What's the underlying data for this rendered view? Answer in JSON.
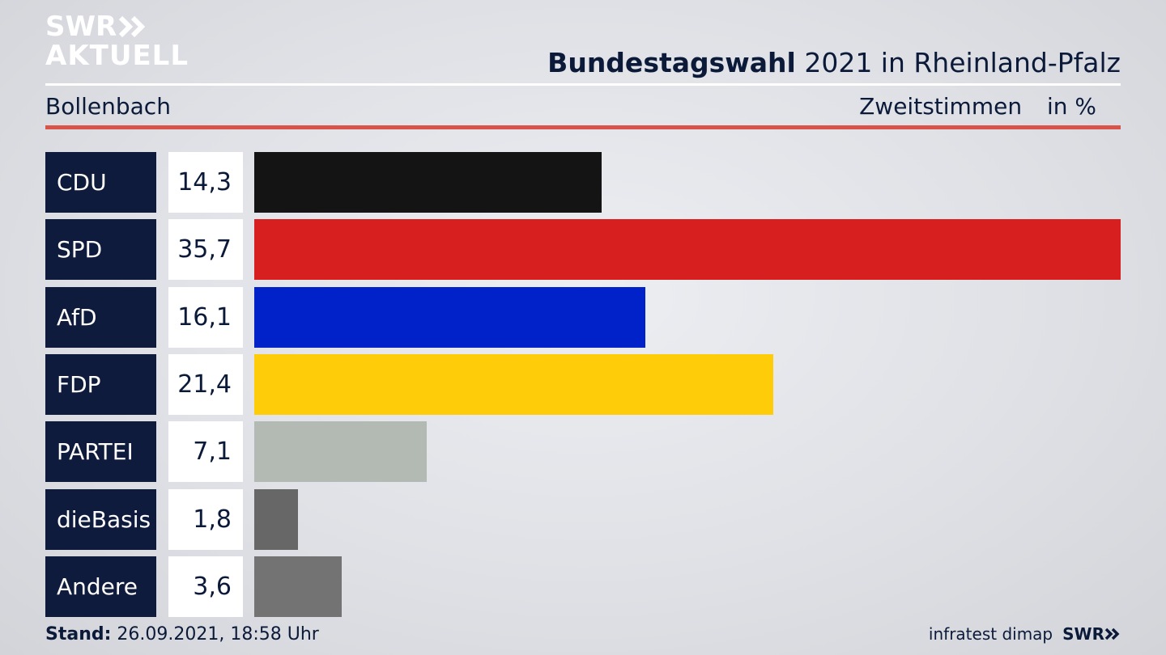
{
  "logo": {
    "line1": "SWR",
    "line2": "AKTUELL"
  },
  "header": {
    "title_bold": "Bundestagswahl",
    "title_rest": "2021 in Rheinland-Pfalz",
    "subtitle": "Bollenbach",
    "metric": "Zweitstimmen",
    "unit": "in %"
  },
  "chart_data": {
    "type": "bar",
    "orientation": "horizontal",
    "title": "Bundestagswahl 2021 in Rheinland-Pfalz",
    "subtitle": "Bollenbach",
    "categories": [
      "CDU",
      "SPD",
      "AfD",
      "FDP",
      "PARTEI",
      "dieBasis",
      "Andere"
    ],
    "values": [
      14.3,
      35.7,
      16.1,
      21.4,
      7.1,
      1.8,
      3.6
    ],
    "value_labels": [
      "14,3",
      "35,7",
      "16,1",
      "21,4",
      "7,1",
      "1,8",
      "3,6"
    ],
    "colors": [
      "#141414",
      "#d71f1f",
      "#0022c8",
      "#ffcc0a",
      "#b3bab4",
      "#676767",
      "#737373"
    ],
    "xlim": [
      0,
      35.7
    ],
    "grid": false
  },
  "footer": {
    "stand_label": "Stand:",
    "stand_value": "26.09.2021, 18:58 Uhr",
    "source": "infratest dimap",
    "brand": "SWR"
  }
}
